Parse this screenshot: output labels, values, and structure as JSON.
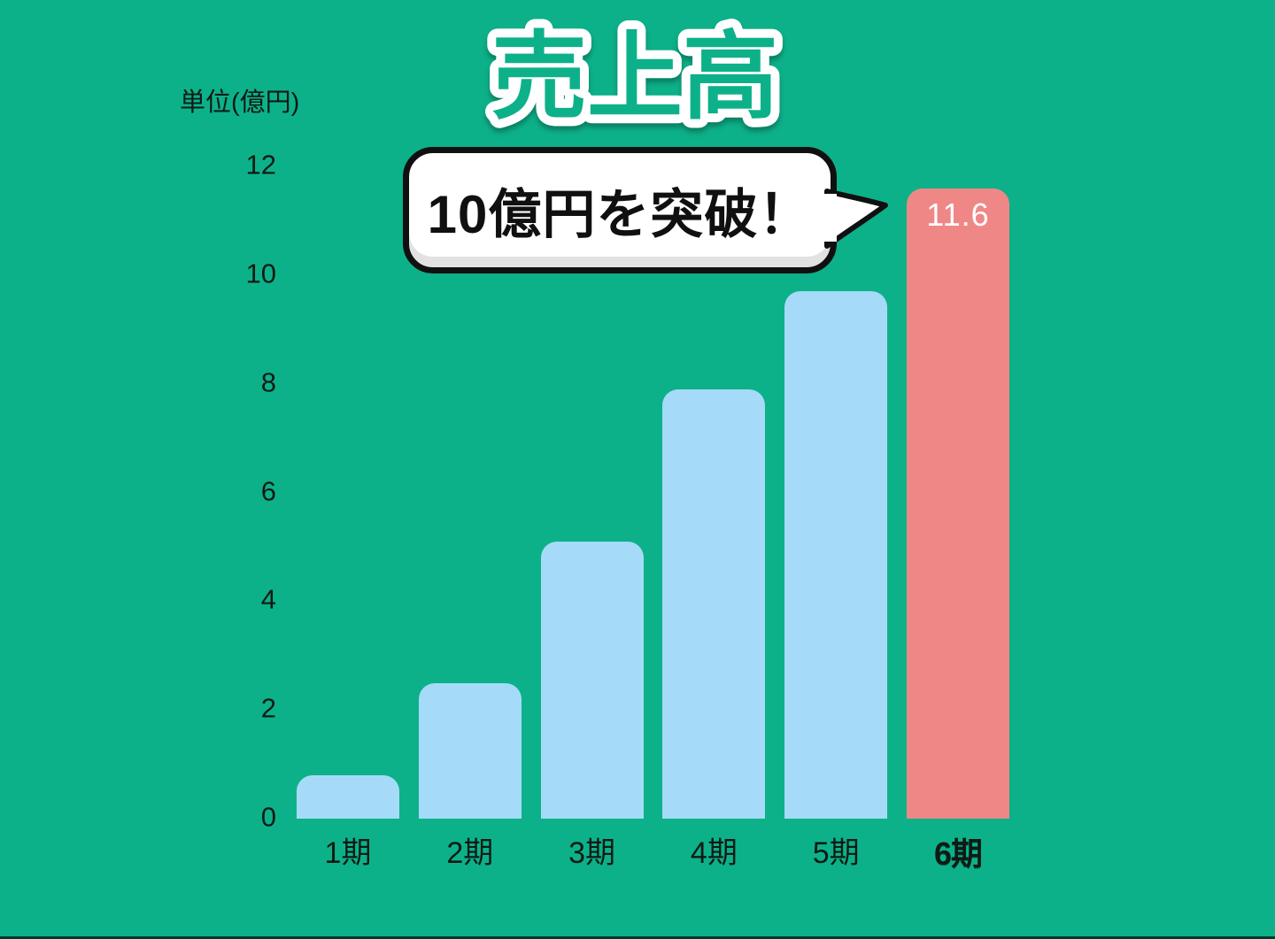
{
  "callout": {
    "text": "10億円を突破！"
  },
  "chart_data": {
    "type": "bar",
    "title": "売上高",
    "categories": [
      "1期",
      "2期",
      "3期",
      "4期",
      "5期",
      "6期"
    ],
    "values": [
      0.8,
      2.5,
      5.1,
      7.9,
      9.7,
      11.6
    ],
    "value_labels": [
      "",
      "",
      "",
      "",
      "",
      "11.6"
    ],
    "bar_colors": [
      "#a5dbf8",
      "#a5dbf8",
      "#a5dbf8",
      "#a5dbf8",
      "#a5dbf8",
      "#f08787"
    ],
    "highlight_index": 5,
    "annotation": "10億円を突破！",
    "ylabel": "単位(億円)",
    "yticks": [
      0,
      2,
      4,
      6,
      8,
      10,
      12
    ],
    "ylim": [
      0,
      12
    ],
    "grid": false,
    "legend": false,
    "colors": {
      "background": "#0db189",
      "bar": "#a5dbf8",
      "highlight": "#f08787",
      "axis_text": "#0e1a15",
      "value_label": "#ffffff",
      "title_fill": "#0db189",
      "title_stroke": "#ffffff",
      "bubble_bg": "#ffffff",
      "bubble_border": "#101010"
    }
  }
}
